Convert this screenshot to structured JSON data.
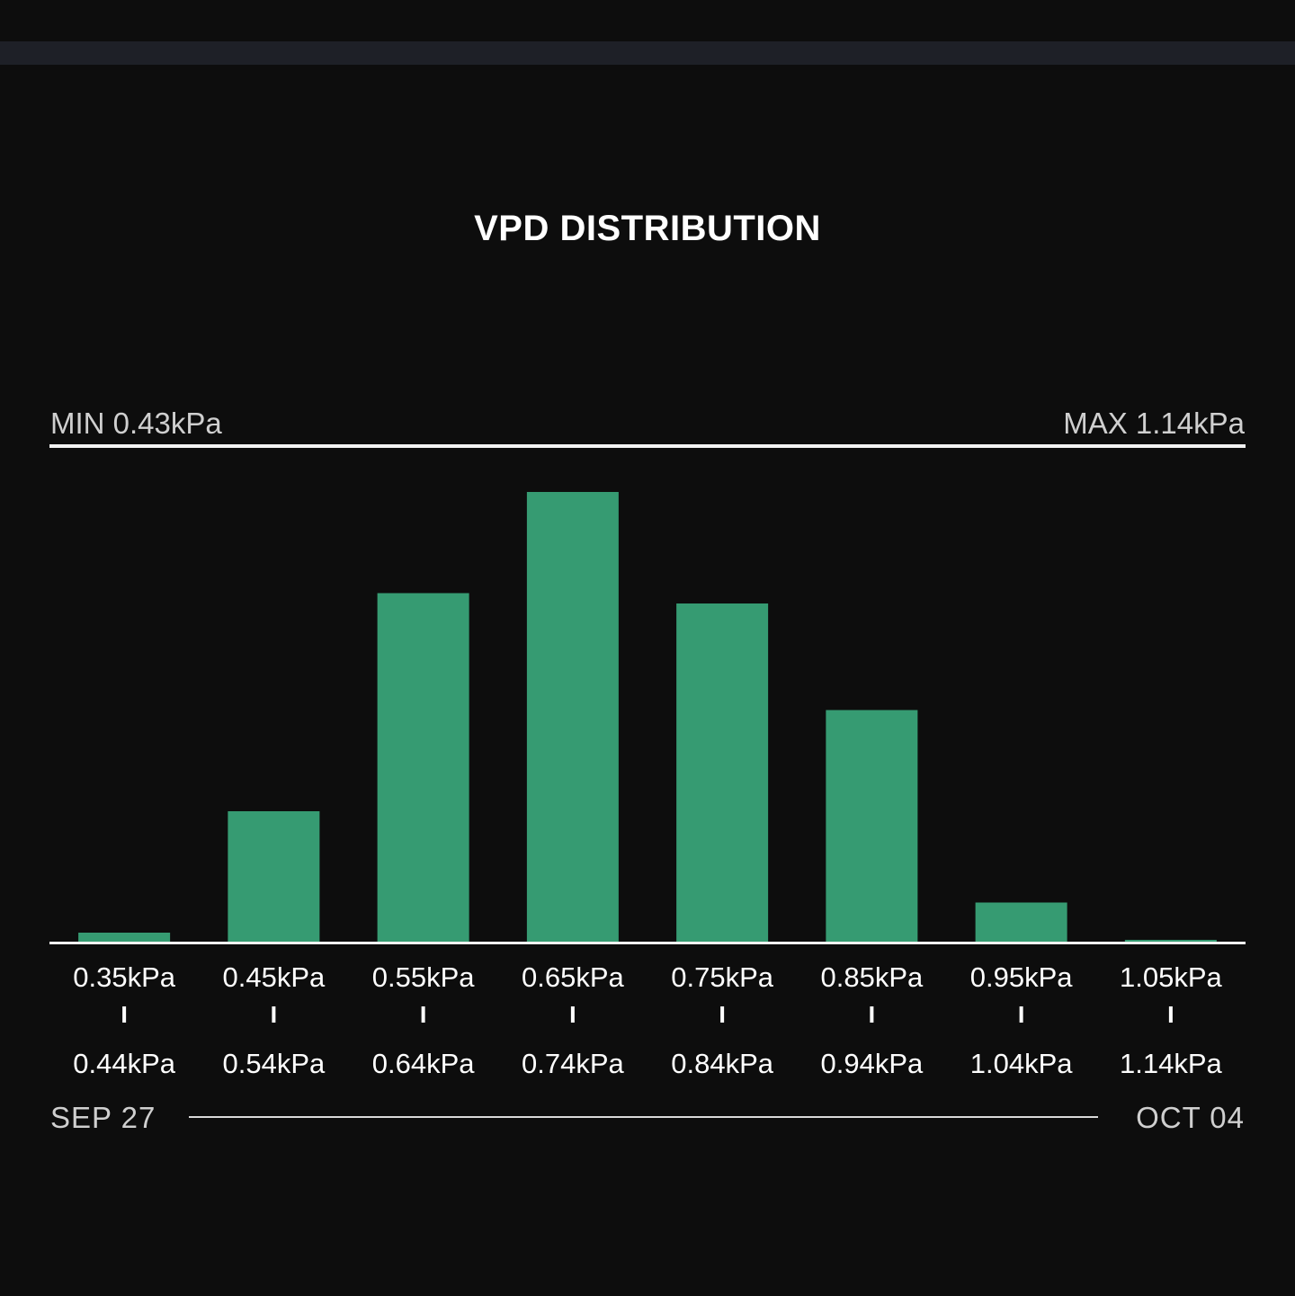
{
  "chart_data": {
    "type": "bar",
    "title": "VPD DISTRIBUTION",
    "range": {
      "min_label": "MIN 0.43kPa",
      "max_label": "MAX 1.14kPa"
    },
    "bins": [
      {
        "from": "0.35kPa",
        "to": "0.44kPa"
      },
      {
        "from": "0.45kPa",
        "to": "0.54kPa"
      },
      {
        "from": "0.55kPa",
        "to": "0.64kPa"
      },
      {
        "from": "0.65kPa",
        "to": "0.74kPa"
      },
      {
        "from": "0.75kPa",
        "to": "0.84kPa"
      },
      {
        "from": "0.85kPa",
        "to": "0.94kPa"
      },
      {
        "from": "0.95kPa",
        "to": "1.04kPa"
      },
      {
        "from": "1.05kPa",
        "to": "1.14kPa"
      }
    ],
    "values": [
      2.0,
      29.0,
      77.5,
      100.0,
      75.2,
      51.5,
      8.7,
      0.4
    ],
    "value_unit": "relative share (tallest bar = 100)",
    "ylim": [
      0,
      100
    ],
    "bar_color": "#369b72",
    "grid": false
  },
  "period": {
    "start": "SEP 27",
    "end": "OCT 04"
  },
  "colors": {
    "background": "#0d0d0d",
    "strip": "#1e2027",
    "text": "#ffffff",
    "muted_text": "#cfcfcf",
    "rule": "#f2f2f2"
  }
}
